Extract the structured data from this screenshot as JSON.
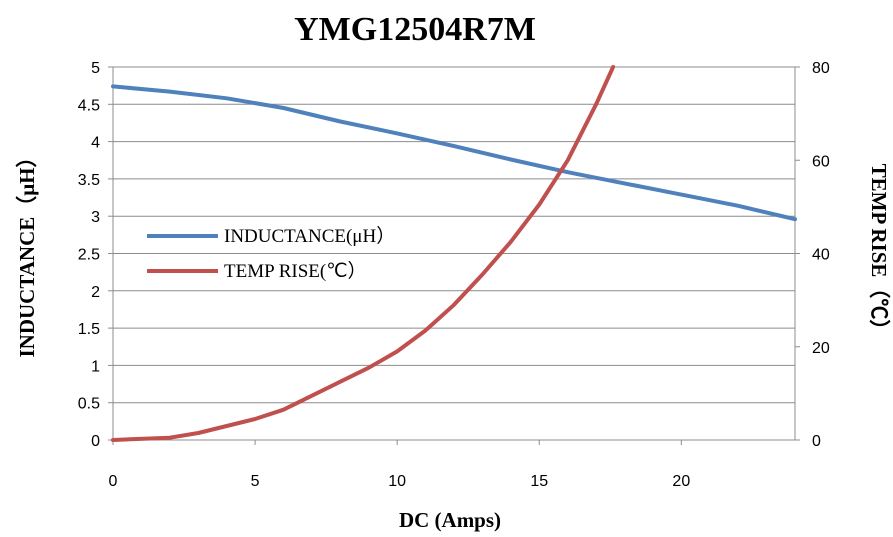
{
  "chart_data": {
    "type": "line",
    "title": "YMG12504R7M",
    "xlabel": "DC (Amps)",
    "ylabel": "INDUCTANCE（μH）",
    "y2label": "TEMP RISE（℃）",
    "xlim": [
      0,
      24
    ],
    "ylim": [
      0,
      5
    ],
    "y2lim": [
      0,
      80
    ],
    "x_ticks": [
      0,
      5,
      10,
      15,
      20
    ],
    "y_ticks": [
      0,
      0.5,
      1,
      1.5,
      2,
      2.5,
      3,
      3.5,
      4,
      4.5,
      5
    ],
    "y_tick_labels": [
      "0",
      "0.5",
      "1",
      "1.5",
      "2",
      "2.5",
      "3",
      "3.5",
      "4",
      "4.5",
      "5"
    ],
    "y2_ticks": [
      0,
      20,
      40,
      60,
      80
    ],
    "grid": true,
    "legend_position": "left",
    "series": [
      {
        "name": "INDUCTANCE(μH）",
        "axis": "left",
        "color": "#4f81bd",
        "x": [
          0,
          2,
          4,
          6,
          8,
          10,
          12,
          14,
          16,
          18,
          20,
          22,
          24
        ],
        "values": [
          4.74,
          4.67,
          4.58,
          4.45,
          4.27,
          4.11,
          3.94,
          3.76,
          3.59,
          3.44,
          3.29,
          3.14,
          2.96
        ]
      },
      {
        "name": "TEMP RISE(℃）",
        "axis": "right",
        "color": "#c0504d",
        "x": [
          0,
          2,
          3,
          4,
          5,
          6,
          7,
          8,
          9,
          10,
          11,
          12,
          13,
          14,
          15,
          16,
          16.5,
          17,
          17.6
        ],
        "values": [
          0,
          0.5,
          1.5,
          3,
          4.5,
          6.5,
          9.5,
          12.5,
          15.5,
          19,
          23.5,
          29,
          35.5,
          42.5,
          50.5,
          60,
          66,
          72,
          80
        ]
      }
    ]
  }
}
